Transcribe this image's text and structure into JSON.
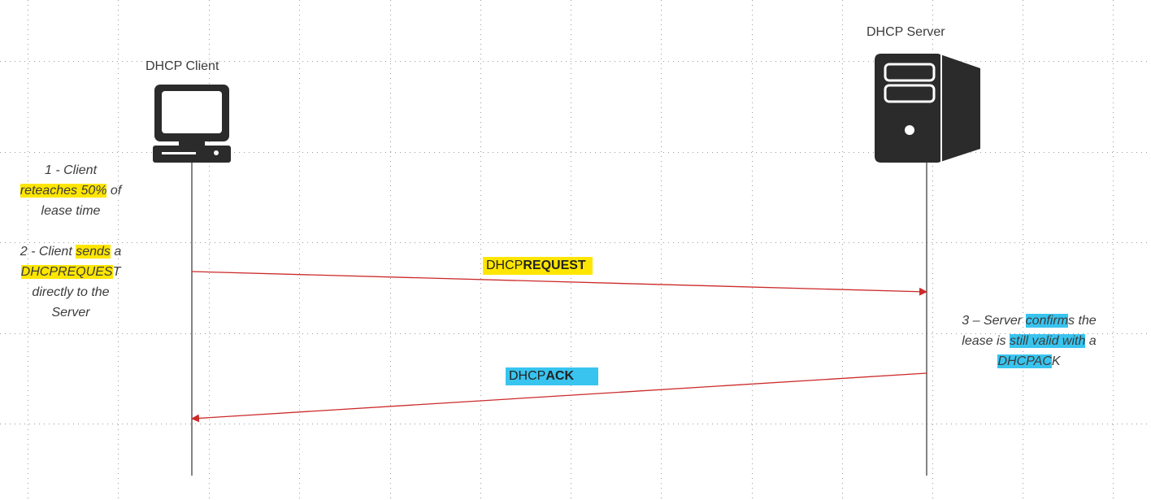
{
  "actors": {
    "client": {
      "label": "DHCP Client"
    },
    "server": {
      "label": "DHCP Server"
    }
  },
  "notes": {
    "step1": {
      "l1": "1 - Client",
      "l2a": "reteaches 50%",
      "l2b": " of",
      "l3": "lease time"
    },
    "step2": {
      "l1a": "2 - Client ",
      "l1b": "sends",
      "l1c": " a",
      "l2a": "DHCPREQUES",
      "l2b": "T",
      "l3": "directly to the",
      "l4": "Server"
    },
    "step3": {
      "l1a": "3 – Server ",
      "l1b": "confirm",
      "l1c": "s the",
      "l2a": "lease is ",
      "l2b": "still valid with",
      "l2c": " a",
      "l3a": "DHCPAC",
      "l3b": "K"
    }
  },
  "messages": {
    "request": {
      "prefix": "DHCP",
      "bold": "REQUEST"
    },
    "ack": {
      "prefix": "DHCP",
      "bold": "ACK"
    }
  },
  "colors": {
    "arrow": "#cc2a2a",
    "highlight_yellow": "#ffe600",
    "highlight_blue": "#38c4ef",
    "icon": "#2b2b2b"
  },
  "icons": {
    "client": "computer-monitor-icon",
    "server": "server-tower-icon"
  }
}
